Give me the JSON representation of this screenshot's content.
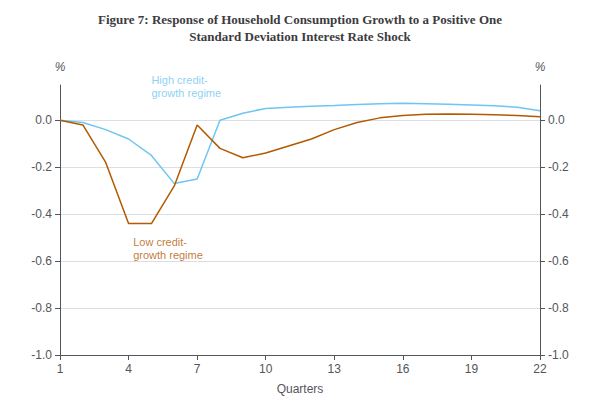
{
  "chart_data": {
    "type": "line",
    "title": "Figure 7: Response of Household Consumption Growth to a Positive One\nStandard Deviation Interest Rate Shock",
    "xlabel": "Quarters",
    "ylabel": "%",
    "y2label": "%",
    "x": [
      1,
      2,
      3,
      4,
      5,
      6,
      7,
      8,
      9,
      10,
      11,
      12,
      13,
      14,
      15,
      16,
      17,
      18,
      19,
      20,
      21,
      22
    ],
    "series": [
      {
        "color": "#6ec6f0",
        "values": [
          0.0,
          -0.01,
          -0.04,
          -0.08,
          -0.15,
          -0.27,
          -0.25,
          0.0,
          0.03,
          0.05,
          0.055,
          0.06,
          0.063,
          0.067,
          0.07,
          0.072,
          0.07,
          0.068,
          0.065,
          0.062,
          0.055,
          0.04
        ]
      },
      {
        "color": "#b35900",
        "values": [
          0.0,
          -0.02,
          -0.18,
          -0.44,
          -0.44,
          -0.28,
          -0.02,
          -0.12,
          -0.16,
          -0.14,
          -0.11,
          -0.08,
          -0.04,
          -0.01,
          0.01,
          0.02,
          0.025,
          0.027,
          0.025,
          0.023,
          0.02,
          0.015
        ]
      }
    ],
    "xlim": [
      1,
      22
    ],
    "xticks": [
      1,
      4,
      7,
      10,
      13,
      16,
      19,
      22
    ],
    "ylim": [
      -1.0,
      0.15
    ],
    "yticks": [
      {
        "value": 0.0,
        "label": "0.0"
      },
      -0.2,
      -0.4,
      -0.6,
      -0.8,
      {
        "value": -1.0,
        "label": "-1.0"
      }
    ],
    "y2lim": [
      -1.0,
      0.15
    ],
    "y2ticks": [
      {
        "value": 0.0,
        "label": "0.0"
      },
      -0.2,
      -0.4,
      -0.6,
      -0.8,
      {
        "value": -1.0,
        "label": "-1.0"
      }
    ],
    "grid": true,
    "annotations": [
      {
        "text": "High credit-\ngrowth regime",
        "x": 5.0,
        "y": 0.09,
        "color": "#6ec6f0"
      },
      {
        "text": "Low credit-\ngrowth regime",
        "x": 4.2,
        "y": -0.49,
        "color": "#b35900"
      }
    ]
  }
}
